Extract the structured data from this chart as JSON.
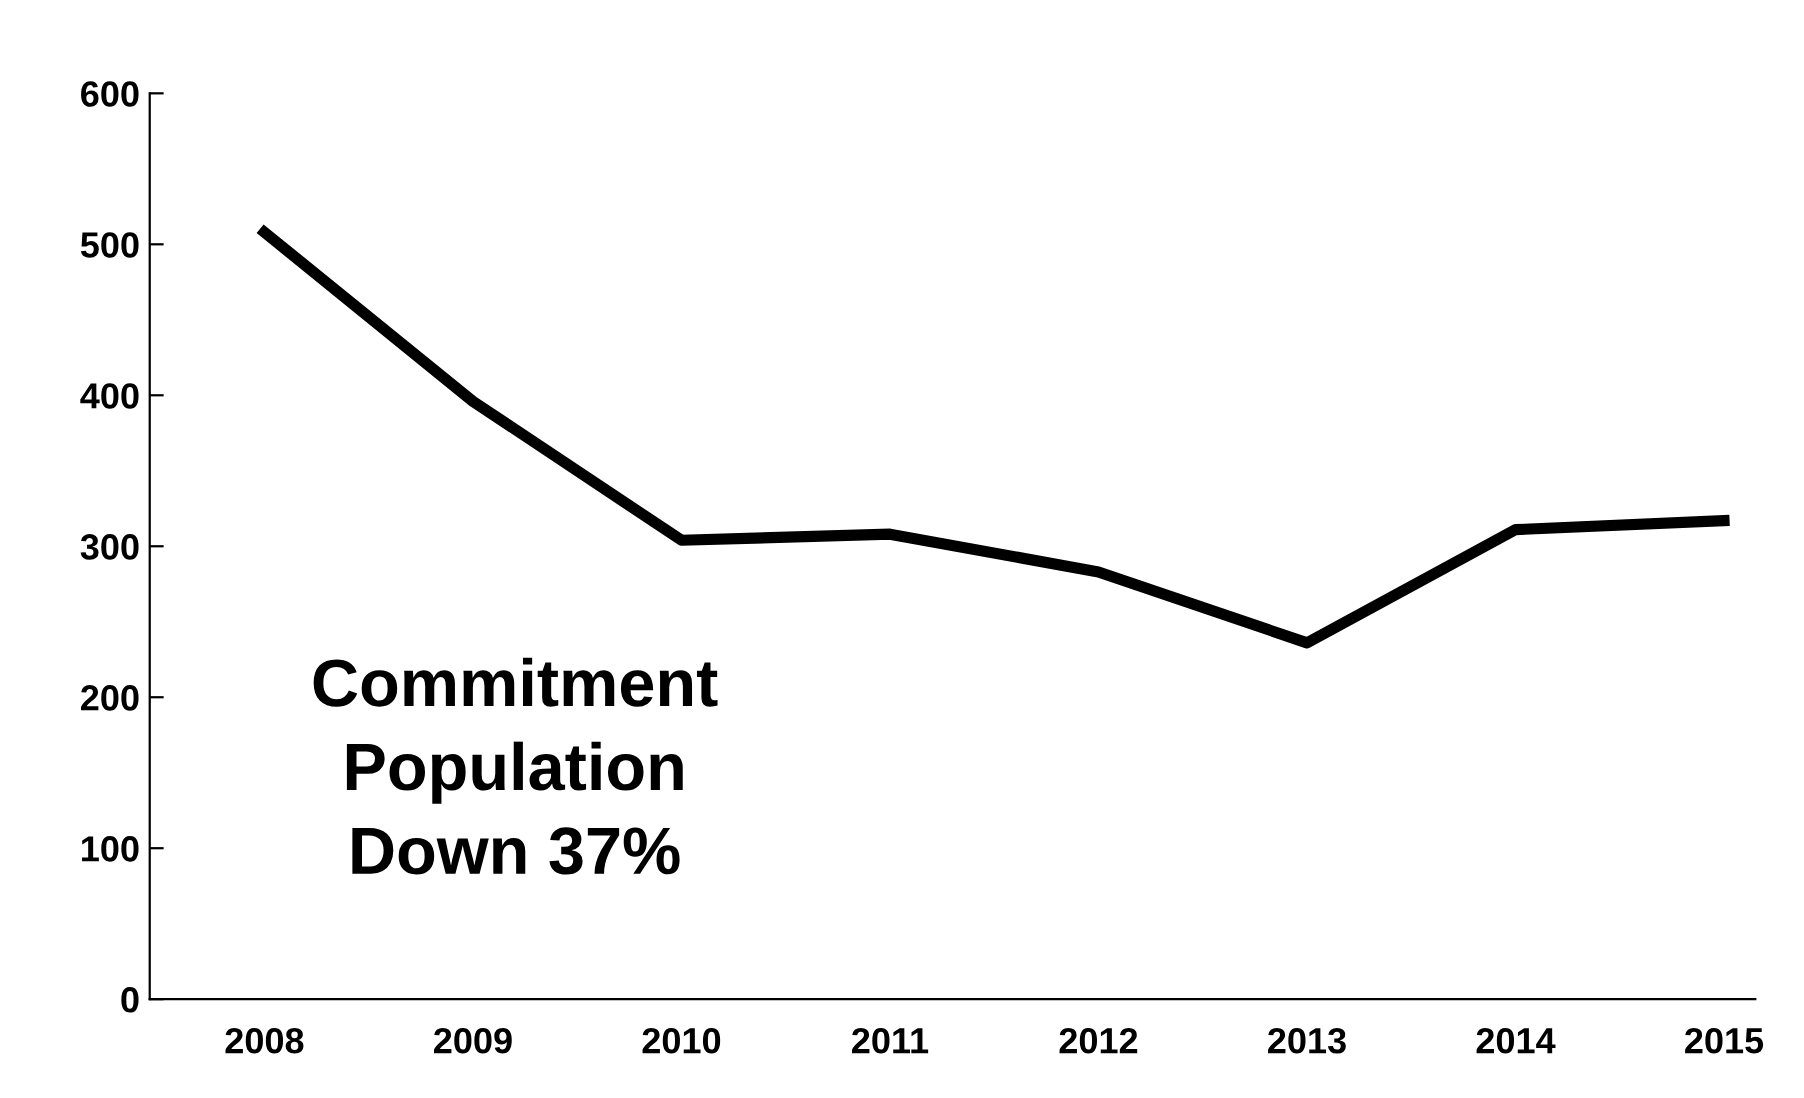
{
  "chart_data": {
    "type": "line",
    "categories": [
      "2008",
      "2009",
      "2010",
      "2011",
      "2012",
      "2013",
      "2014",
      "2015"
    ],
    "series": [
      {
        "color": "#000000",
        "values": [
          508,
          396,
          304,
          308,
          283,
          236,
          311,
          317
        ]
      }
    ],
    "ylim": [
      0,
      600
    ],
    "yticks": [
      0,
      100,
      200,
      300,
      400,
      500,
      600
    ],
    "grid": false,
    "legend": false,
    "marker": "none",
    "line_style": "solid",
    "annotations": [
      "Commitment\nPopulation\nDown 37%"
    ]
  }
}
